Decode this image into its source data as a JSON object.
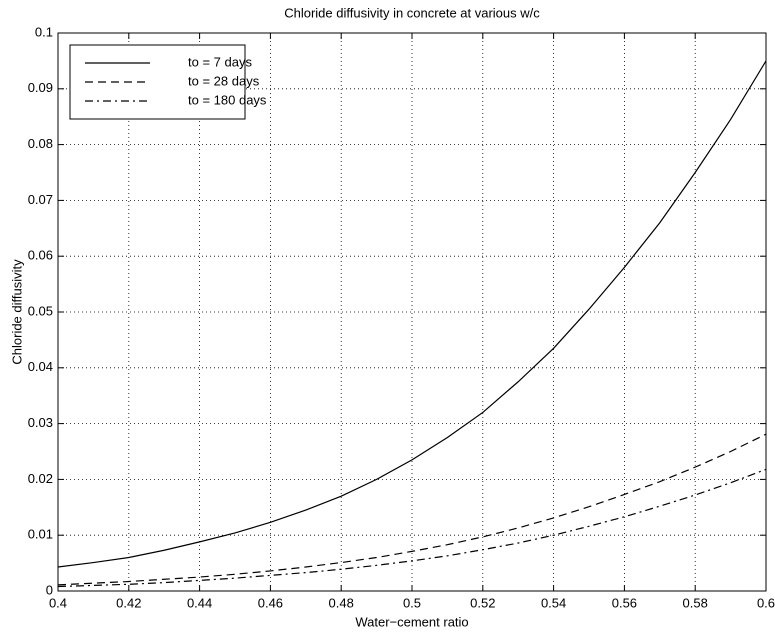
{
  "chart_data": {
    "type": "line",
    "title": "Chloride diffusivity in concrete at various w/c",
    "x_label": "Water−cement ratio",
    "y_label": "Chloride diffusivity",
    "x": [
      0.4,
      0.41,
      0.42,
      0.43,
      0.44,
      0.45,
      0.46,
      0.47,
      0.48,
      0.49,
      0.5,
      0.51,
      0.52,
      0.53,
      0.54,
      0.55,
      0.56,
      0.57,
      0.58,
      0.59,
      0.6
    ],
    "series": [
      {
        "name": "to = 7 days",
        "color": "#000000",
        "style": "solid",
        "values": [
          0.0043,
          0.0051,
          0.006,
          0.0073,
          0.0088,
          0.0104,
          0.0123,
          0.0145,
          0.017,
          0.02,
          0.0235,
          0.0275,
          0.032,
          0.0375,
          0.0435,
          0.0505,
          0.058,
          0.066,
          0.075,
          0.0845,
          0.095
        ]
      },
      {
        "name": "to = 28 days",
        "color": "#000000",
        "style": "dashed",
        "values": [
          0.0011,
          0.0014,
          0.0017,
          0.0021,
          0.0025,
          0.003,
          0.0036,
          0.0043,
          0.0051,
          0.006,
          0.0071,
          0.0083,
          0.0097,
          0.0113,
          0.0131,
          0.0151,
          0.0173,
          0.0196,
          0.0222,
          0.025,
          0.0281
        ]
      },
      {
        "name": "to = 180 days",
        "color": "#000000",
        "style": "dashdot",
        "values": [
          0.0008,
          0.001,
          0.0012,
          0.0015,
          0.0019,
          0.0023,
          0.0028,
          0.0033,
          0.0039,
          0.0046,
          0.0054,
          0.0063,
          0.0074,
          0.0086,
          0.01,
          0.0116,
          0.0133,
          0.0152,
          0.0172,
          0.0194,
          0.0218
        ]
      }
    ],
    "xlim": [
      0.4,
      0.6
    ],
    "ylim": [
      0,
      0.1
    ],
    "xticks": [
      0.4,
      0.42,
      0.44,
      0.46,
      0.48,
      0.5,
      0.52,
      0.54,
      0.56,
      0.58,
      0.6
    ],
    "yticks": [
      0,
      0.01,
      0.02,
      0.03,
      0.04,
      0.05,
      0.06,
      0.07,
      0.08,
      0.09,
      0.1
    ],
    "grid": true,
    "legend": "upper left"
  }
}
